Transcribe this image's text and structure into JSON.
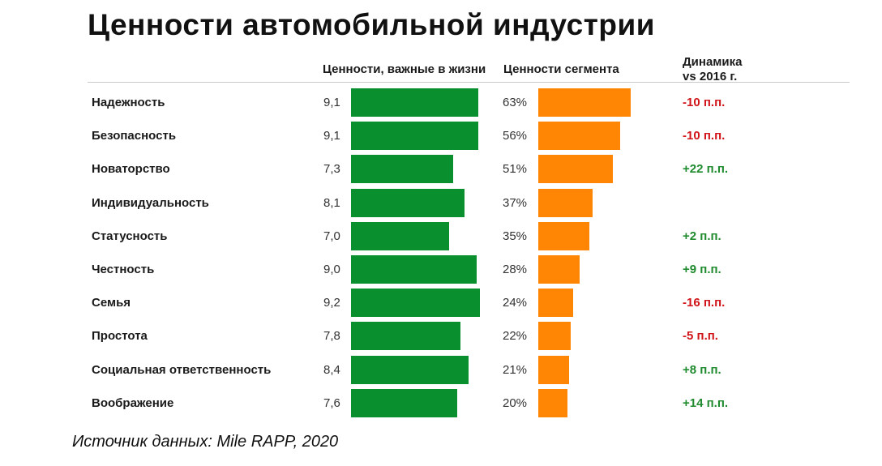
{
  "title": "Ценности автомобильной индустрии",
  "headers": {
    "life_values": "Ценности, важные в жизни",
    "segment_values": "Ценности сегмента",
    "dynamics_line1": "Динамика",
    "dynamics_line2": "vs 2016 г."
  },
  "source": "Источник данных: Mile RAPP, 2020",
  "colors": {
    "life_bar": "#0a8f2e",
    "segment_bar": "#ff8604",
    "positive": "#1f8a2e",
    "negative": "#d0141a"
  },
  "chart_data": {
    "type": "bar",
    "orientation": "horizontal",
    "categories": [
      "Надежность",
      "Безопасность",
      "Новаторство",
      "Индивидуальность",
      "Статусность",
      "Честность",
      "Семья",
      "Простота",
      "Социальная ответственность",
      "Воображение"
    ],
    "series": [
      {
        "name": "Ценности, важные в жизни",
        "values": [
          9.1,
          9.1,
          7.3,
          8.1,
          7.0,
          9.0,
          9.2,
          7.8,
          8.4,
          7.6
        ],
        "labels": [
          "9,1",
          "9,1",
          "7,3",
          "8,1",
          "7,0",
          "9,0",
          "9,2",
          "7,8",
          "8,4",
          "7,6"
        ]
      },
      {
        "name": "Ценности сегмента",
        "values": [
          63,
          56,
          51,
          37,
          35,
          28,
          24,
          22,
          21,
          20
        ],
        "labels": [
          "63%",
          "56%",
          "51%",
          "37%",
          "35%",
          "28%",
          "24%",
          "22%",
          "21%",
          "20%"
        ]
      }
    ],
    "dynamics": [
      {
        "text": "-10 п.п.",
        "value": -10
      },
      {
        "text": "-10 п.п.",
        "value": -10
      },
      {
        "text": "+22 п.п.",
        "value": 22
      },
      {
        "text": "",
        "value": null
      },
      {
        "text": "+2 п.п.",
        "value": 2
      },
      {
        "text": "+9 п.п.",
        "value": 9
      },
      {
        "text": "-16 п.п.",
        "value": -16
      },
      {
        "text": "-5 п.п.",
        "value": -5
      },
      {
        "text": "+8 п.п.",
        "value": 8
      },
      {
        "text": "+14 п.п.",
        "value": 14
      }
    ]
  }
}
